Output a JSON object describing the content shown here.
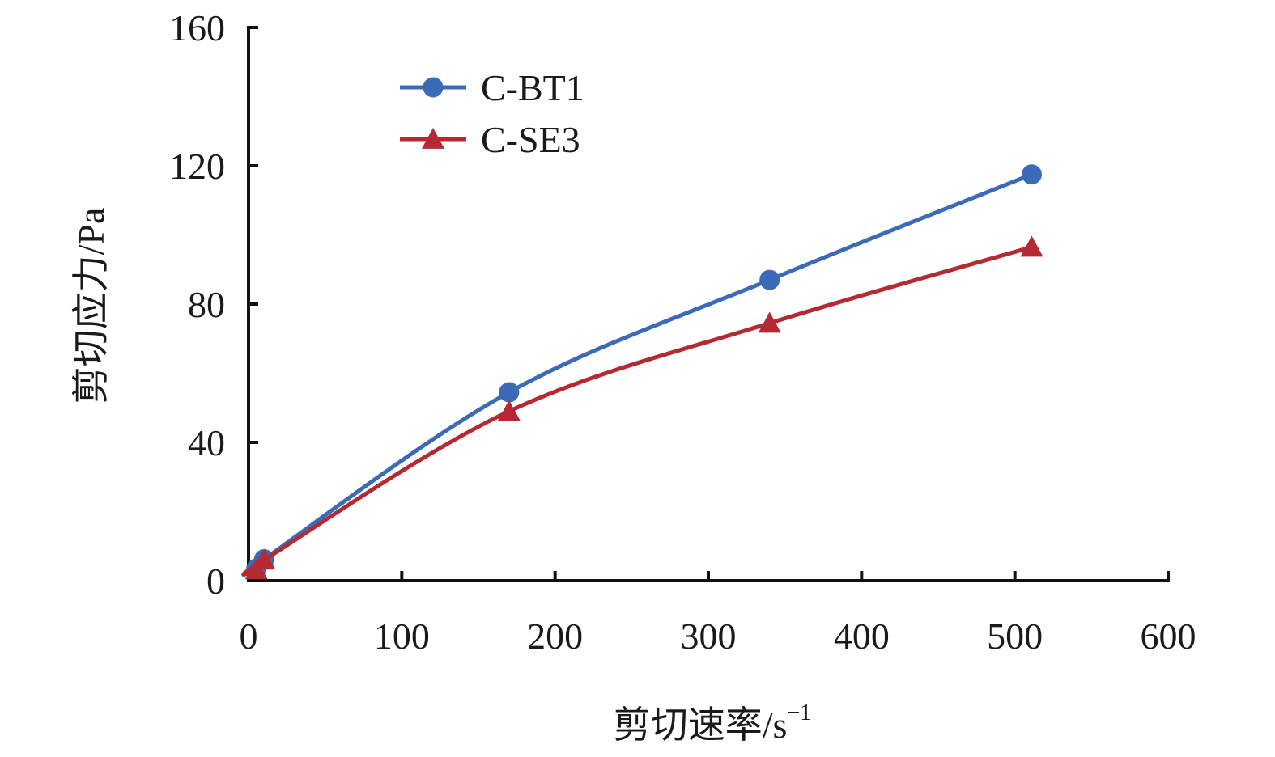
{
  "chart_data": {
    "type": "line",
    "title": "",
    "xlabel": "剪切速率/s",
    "xlabel_sup": "−1",
    "ylabel": "剪切应力/Pa",
    "xlim": [
      0,
      600
    ],
    "ylim": [
      0,
      160
    ],
    "xticks": [
      0,
      100,
      200,
      300,
      400,
      500,
      600
    ],
    "yticks": [
      0,
      40,
      80,
      120,
      160
    ],
    "x_tick_labels": [
      "0",
      "100",
      "200",
      "300",
      "400",
      "500",
      "600"
    ],
    "y_tick_labels": [
      "0",
      "40",
      "80",
      "120",
      "160"
    ],
    "grid": false,
    "legend_position": "top-left",
    "series": [
      {
        "name": "C-BT1",
        "marker": "circle",
        "color": "#3b6bb8",
        "points": [
          [
            5.1,
            3.5
          ],
          [
            10.2,
            6.2
          ],
          [
            170,
            54.5
          ],
          [
            340,
            87
          ],
          [
            511,
            117.5
          ]
        ]
      },
      {
        "name": "C-SE3",
        "marker": "triangle",
        "color": "#b52a32",
        "points": [
          [
            5.1,
            3.2
          ],
          [
            10.2,
            6.0
          ],
          [
            170,
            49
          ],
          [
            340,
            74.5
          ],
          [
            511,
            96.5
          ]
        ]
      }
    ]
  }
}
